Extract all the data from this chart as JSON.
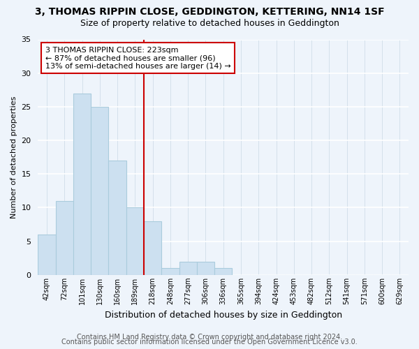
{
  "title": "3, THOMAS RIPPIN CLOSE, GEDDINGTON, KETTERING, NN14 1SF",
  "subtitle": "Size of property relative to detached houses in Geddington",
  "xlabel": "Distribution of detached houses by size in Geddington",
  "ylabel": "Number of detached properties",
  "bar_labels": [
    "42sqm",
    "72sqm",
    "101sqm",
    "130sqm",
    "160sqm",
    "189sqm",
    "218sqm",
    "248sqm",
    "277sqm",
    "306sqm",
    "336sqm",
    "365sqm",
    "394sqm",
    "424sqm",
    "453sqm",
    "482sqm",
    "512sqm",
    "541sqm",
    "571sqm",
    "600sqm",
    "629sqm"
  ],
  "bar_heights": [
    6,
    11,
    27,
    25,
    17,
    10,
    8,
    1,
    2,
    2,
    1,
    0,
    0,
    0,
    0,
    0,
    0,
    0,
    0,
    0,
    0
  ],
  "bar_color": "#cce0f0",
  "bar_edgecolor": "#aaccdd",
  "vline_color": "#cc0000",
  "vline_x": 5.5,
  "annotation_text": "3 THOMAS RIPPIN CLOSE: 223sqm\n← 87% of detached houses are smaller (96)\n13% of semi-detached houses are larger (14) →",
  "annotation_box_edgecolor": "#cc0000",
  "annotation_box_facecolor": "white",
  "ylim": [
    0,
    35
  ],
  "yticks": [
    0,
    5,
    10,
    15,
    20,
    25,
    30,
    35
  ],
  "footer1": "Contains HM Land Registry data © Crown copyright and database right 2024.",
  "footer2": "Contains public sector information licensed under the Open Government Licence v3.0.",
  "background_color": "#eef4fb",
  "plot_background_color": "#eef4fb",
  "title_fontsize": 10,
  "subtitle_fontsize": 9,
  "annotation_fontsize": 8,
  "footer_fontsize": 7,
  "ylabel_fontsize": 8,
  "xlabel_fontsize": 9,
  "grid_color": "#ffffff",
  "grid_color_x": "#d0dde8"
}
